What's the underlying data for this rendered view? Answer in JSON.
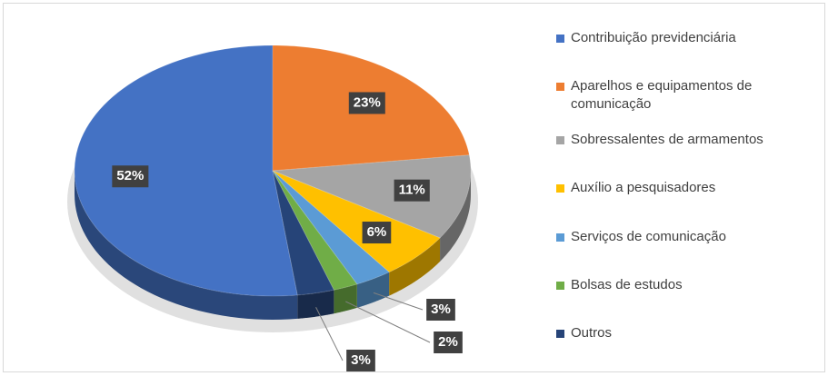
{
  "chart_data": {
    "type": "pie",
    "categories": [
      "Contribuição previdenciária",
      "Aparelhos e equipamentos de comunicação",
      "Sobressalentes de armamentos",
      "Auxílio a pesquisadores",
      "Serviços de comunicação",
      "Bolsas de estudos",
      "Outros"
    ],
    "values": [
      52,
      23,
      11,
      6,
      3,
      2,
      3
    ],
    "value_labels": [
      "52%",
      "23%",
      "11%",
      "6%",
      "3%",
      "2%",
      "3%"
    ],
    "colors": [
      "#4472c4",
      "#ed7d31",
      "#a5a5a5",
      "#ffc000",
      "#5b9bd5",
      "#70ad47",
      "#264478"
    ],
    "legend": "right"
  }
}
